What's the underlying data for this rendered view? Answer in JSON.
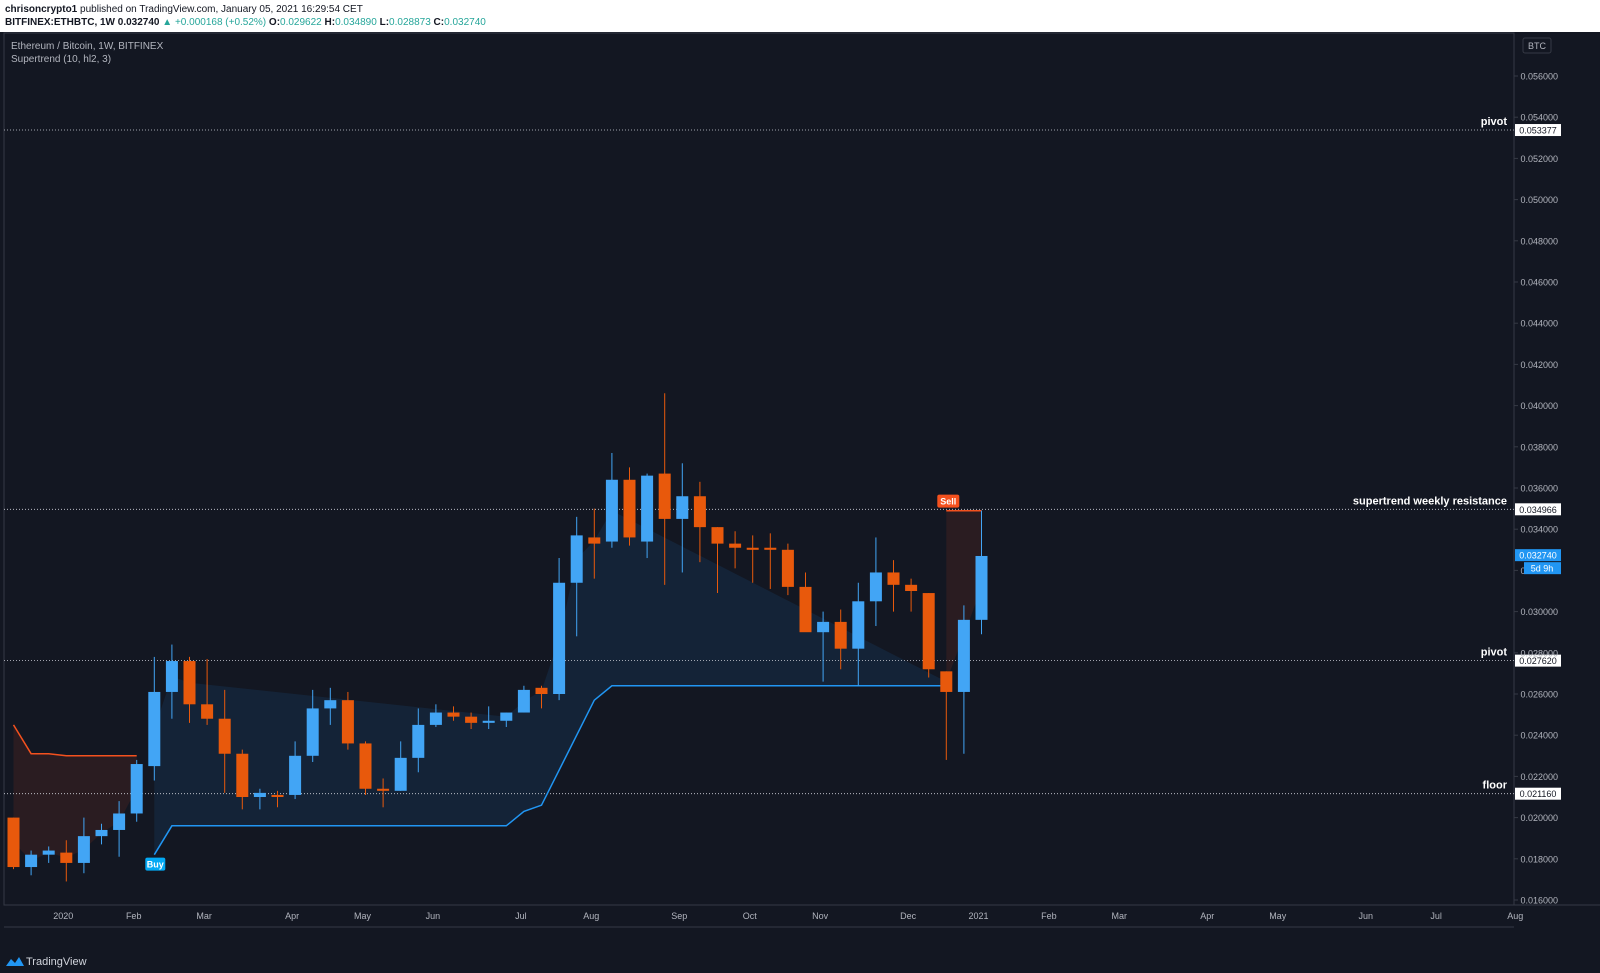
{
  "header": {
    "author": "chrisoncrypto1",
    "published": "published on TradingView.com, January 05, 2021 16:29:54 CET",
    "symbol": "BITFINEX:ETHBTC, 1W",
    "price": "0.032740",
    "change": "▲ +0.000168 (+0.52%)",
    "o_label": "O:",
    "o_value": "0.029622",
    "h_label": "H:",
    "h_value": "0.034890",
    "l_label": "L:",
    "l_value": "0.028873",
    "c_label": "C:",
    "c_value": "0.032740"
  },
  "legend": {
    "title": "Ethereum / Bitcoin, 1W, BITFINEX",
    "indicator": "Supertrend (10, hl2, 3)",
    "currency": "BTC"
  },
  "footer": {
    "brand": "TradingView"
  },
  "colors": {
    "background": "#131722",
    "up": "#42a5f5",
    "down": "#e8590c",
    "supertrend_up": "#2196f3",
    "supertrend_down": "#f4511e"
  },
  "chart_data": {
    "type": "candlestick",
    "title": "Ethereum / Bitcoin, 1W, BITFINEX",
    "ylim": [
      0.0158,
      0.0595
    ],
    "y_ticks": [
      "0.016000",
      "0.018000",
      "0.020000",
      "0.022000",
      "0.024000",
      "0.026000",
      "0.028000",
      "0.030000",
      "0.032000",
      "0.034000",
      "0.036000",
      "0.038000",
      "0.040000",
      "0.042000",
      "0.044000",
      "0.046000",
      "0.048000",
      "0.050000",
      "0.052000",
      "0.054000",
      "0.056000"
    ],
    "x_ticks": [
      {
        "label": "2020",
        "week": 3
      },
      {
        "label": "Feb",
        "week": 7
      },
      {
        "label": "Mar",
        "week": 11
      },
      {
        "label": "Apr",
        "week": 16
      },
      {
        "label": "May",
        "week": 20
      },
      {
        "label": "Jun",
        "week": 24
      },
      {
        "label": "Jul",
        "week": 29
      },
      {
        "label": "Aug",
        "week": 33
      },
      {
        "label": "Sep",
        "week": 38
      },
      {
        "label": "Oct",
        "week": 42
      },
      {
        "label": "Nov",
        "week": 46
      },
      {
        "label": "Dec",
        "week": 51
      },
      {
        "label": "2021",
        "week": 55
      },
      {
        "label": "Feb",
        "week": 59
      },
      {
        "label": "Mar",
        "week": 63
      },
      {
        "label": "Apr",
        "week": 68
      },
      {
        "label": "May",
        "week": 72
      },
      {
        "label": "Jun",
        "week": 77
      },
      {
        "label": "Jul",
        "week": 81
      },
      {
        "label": "Aug",
        "week": 85.5
      }
    ],
    "candles": [
      {
        "o": 0.02,
        "h": 0.02,
        "l": 0.0175,
        "c": 0.0176
      },
      {
        "o": 0.0176,
        "h": 0.0184,
        "l": 0.0172,
        "c": 0.0182
      },
      {
        "o": 0.0182,
        "h": 0.0186,
        "l": 0.0178,
        "c": 0.0184
      },
      {
        "o": 0.0183,
        "h": 0.0189,
        "l": 0.0169,
        "c": 0.0178
      },
      {
        "o": 0.0178,
        "h": 0.02,
        "l": 0.0173,
        "c": 0.0191
      },
      {
        "o": 0.0191,
        "h": 0.0197,
        "l": 0.0187,
        "c": 0.0194
      },
      {
        "o": 0.0194,
        "h": 0.0208,
        "l": 0.0181,
        "c": 0.0202
      },
      {
        "o": 0.0202,
        "h": 0.0228,
        "l": 0.0198,
        "c": 0.0226
      },
      {
        "o": 0.0225,
        "h": 0.0278,
        "l": 0.0218,
        "c": 0.0261
      },
      {
        "o": 0.0261,
        "h": 0.0284,
        "l": 0.0248,
        "c": 0.0276
      },
      {
        "o": 0.0276,
        "h": 0.0278,
        "l": 0.0246,
        "c": 0.0255
      },
      {
        "o": 0.0255,
        "h": 0.0277,
        "l": 0.0245,
        "c": 0.0248
      },
      {
        "o": 0.0248,
        "h": 0.0262,
        "l": 0.0212,
        "c": 0.0231
      },
      {
        "o": 0.0231,
        "h": 0.0233,
        "l": 0.0204,
        "c": 0.021
      },
      {
        "o": 0.021,
        "h": 0.0214,
        "l": 0.0204,
        "c": 0.0212
      },
      {
        "o": 0.0211,
        "h": 0.0213,
        "l": 0.0205,
        "c": 0.021
      },
      {
        "o": 0.0211,
        "h": 0.0237,
        "l": 0.0209,
        "c": 0.023
      },
      {
        "o": 0.023,
        "h": 0.0262,
        "l": 0.0227,
        "c": 0.0253
      },
      {
        "o": 0.0253,
        "h": 0.0263,
        "l": 0.0245,
        "c": 0.0257
      },
      {
        "o": 0.0257,
        "h": 0.0261,
        "l": 0.0233,
        "c": 0.0236
      },
      {
        "o": 0.0236,
        "h": 0.0237,
        "l": 0.0211,
        "c": 0.0214
      },
      {
        "o": 0.0214,
        "h": 0.0219,
        "l": 0.0205,
        "c": 0.0213
      },
      {
        "o": 0.0213,
        "h": 0.0237,
        "l": 0.0213,
        "c": 0.0229
      },
      {
        "o": 0.0229,
        "h": 0.0253,
        "l": 0.0222,
        "c": 0.0245
      },
      {
        "o": 0.0245,
        "h": 0.0255,
        "l": 0.0244,
        "c": 0.0251
      },
      {
        "o": 0.0251,
        "h": 0.0254,
        "l": 0.0247,
        "c": 0.0249
      },
      {
        "o": 0.0249,
        "h": 0.0251,
        "l": 0.0243,
        "c": 0.0246
      },
      {
        "o": 0.0246,
        "h": 0.0254,
        "l": 0.0243,
        "c": 0.0247
      },
      {
        "o": 0.0247,
        "h": 0.0251,
        "l": 0.0244,
        "c": 0.0251
      },
      {
        "o": 0.0251,
        "h": 0.0264,
        "l": 0.0251,
        "c": 0.0262
      },
      {
        "o": 0.0263,
        "h": 0.0264,
        "l": 0.0253,
        "c": 0.026
      },
      {
        "o": 0.026,
        "h": 0.0326,
        "l": 0.0257,
        "c": 0.0314
      },
      {
        "o": 0.0314,
        "h": 0.0346,
        "l": 0.0288,
        "c": 0.0337
      },
      {
        "o": 0.0336,
        "h": 0.035,
        "l": 0.0316,
        "c": 0.0333
      },
      {
        "o": 0.0334,
        "h": 0.0377,
        "l": 0.0331,
        "c": 0.0364
      },
      {
        "o": 0.0364,
        "h": 0.037,
        "l": 0.0332,
        "c": 0.0336
      },
      {
        "o": 0.0334,
        "h": 0.0367,
        "l": 0.0326,
        "c": 0.0366
      },
      {
        "o": 0.0367,
        "h": 0.0406,
        "l": 0.0313,
        "c": 0.0345
      },
      {
        "o": 0.0345,
        "h": 0.0372,
        "l": 0.0319,
        "c": 0.0356
      },
      {
        "o": 0.0356,
        "h": 0.0363,
        "l": 0.0324,
        "c": 0.0341
      },
      {
        "o": 0.0341,
        "h": 0.0341,
        "l": 0.0309,
        "c": 0.0333
      },
      {
        "o": 0.0333,
        "h": 0.0339,
        "l": 0.0321,
        "c": 0.0331
      },
      {
        "o": 0.0331,
        "h": 0.0337,
        "l": 0.0314,
        "c": 0.033
      },
      {
        "o": 0.0331,
        "h": 0.0338,
        "l": 0.0311,
        "c": 0.033
      },
      {
        "o": 0.033,
        "h": 0.0333,
        "l": 0.0308,
        "c": 0.0312
      },
      {
        "o": 0.0312,
        "h": 0.0319,
        "l": 0.0293,
        "c": 0.029
      },
      {
        "o": 0.029,
        "h": 0.03,
        "l": 0.0266,
        "c": 0.0295
      },
      {
        "o": 0.0295,
        "h": 0.0301,
        "l": 0.0272,
        "c": 0.0282
      },
      {
        "o": 0.0282,
        "h": 0.0314,
        "l": 0.0264,
        "c": 0.0305
      },
      {
        "o": 0.0305,
        "h": 0.0336,
        "l": 0.0293,
        "c": 0.0319
      },
      {
        "o": 0.0319,
        "h": 0.0325,
        "l": 0.03,
        "c": 0.0313
      },
      {
        "o": 0.0313,
        "h": 0.0316,
        "l": 0.03,
        "c": 0.031
      },
      {
        "o": 0.0309,
        "h": 0.0309,
        "l": 0.0268,
        "c": 0.0272
      },
      {
        "o": 0.0271,
        "h": 0.0271,
        "l": 0.0228,
        "c": 0.0261
      },
      {
        "o": 0.0261,
        "h": 0.0303,
        "l": 0.0231,
        "c": 0.0296
      },
      {
        "o": 0.0296,
        "h": 0.0349,
        "l": 0.0289,
        "c": 0.0327
      }
    ],
    "supertrend": {
      "down_segment": [
        [
          0,
          0.0245
        ],
        [
          1,
          0.0231
        ],
        [
          2,
          0.0231
        ],
        [
          3,
          0.023
        ],
        [
          4,
          0.023
        ],
        [
          5,
          0.023
        ],
        [
          6,
          0.023
        ],
        [
          7,
          0.023
        ]
      ],
      "up_segment": [
        [
          8,
          0.0182
        ],
        [
          9,
          0.0196
        ],
        [
          10,
          0.0196
        ],
        [
          28,
          0.0196
        ],
        [
          29,
          0.0203
        ],
        [
          30,
          0.0206
        ],
        [
          31,
          0.0223
        ],
        [
          32,
          0.024
        ],
        [
          33,
          0.0257
        ],
        [
          34,
          0.0264
        ],
        [
          53,
          0.0264
        ]
      ],
      "down_segment2": [
        [
          53,
          0.0349
        ],
        [
          55,
          0.0349
        ]
      ]
    },
    "signals": [
      {
        "label": "Buy",
        "week": 8,
        "price": 0.0182
      },
      {
        "label": "Sell",
        "week": 53,
        "price": 0.0349
      }
    ],
    "horizontal_lines": [
      {
        "label": "pivot",
        "value": 0.053377,
        "value_label": "0.053377"
      },
      {
        "label": "supertrend weekly resistance",
        "value": 0.034966,
        "value_label": "0.034966"
      },
      {
        "label": "pivot",
        "value": 0.02762,
        "value_label": "0.027620"
      },
      {
        "label": "floor",
        "value": 0.02116,
        "value_label": "0.021160"
      }
    ],
    "price_label": {
      "value": 0.03274,
      "label": "0.032740",
      "countdown": "5d 9h"
    }
  }
}
